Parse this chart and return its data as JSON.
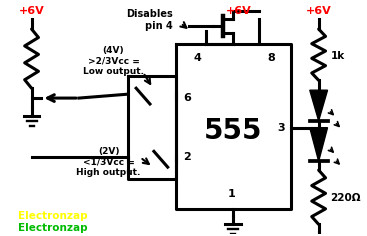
{
  "bg_color": "#ffffff",
  "vcc_color": "#ff0000",
  "black": "#000000",
  "yellow_text": "#ffff00",
  "green_text": "#00bb00",
  "ic_label": "555",
  "label_1k": "1k",
  "label_220": "220Ω",
  "label_disables": "Disables\npin 4",
  "label_4v": "(4V)\n>2/3Vcc =\nLow output.",
  "label_2v": "(2V)\n<1/3Vcc =\nHigh output.",
  "label_vcc1": "+6V",
  "label_vcc2": "+6V",
  "label_vcc3": "+6V",
  "label_ez_y": "Electronzap",
  "label_ez_g": "Electronzap"
}
